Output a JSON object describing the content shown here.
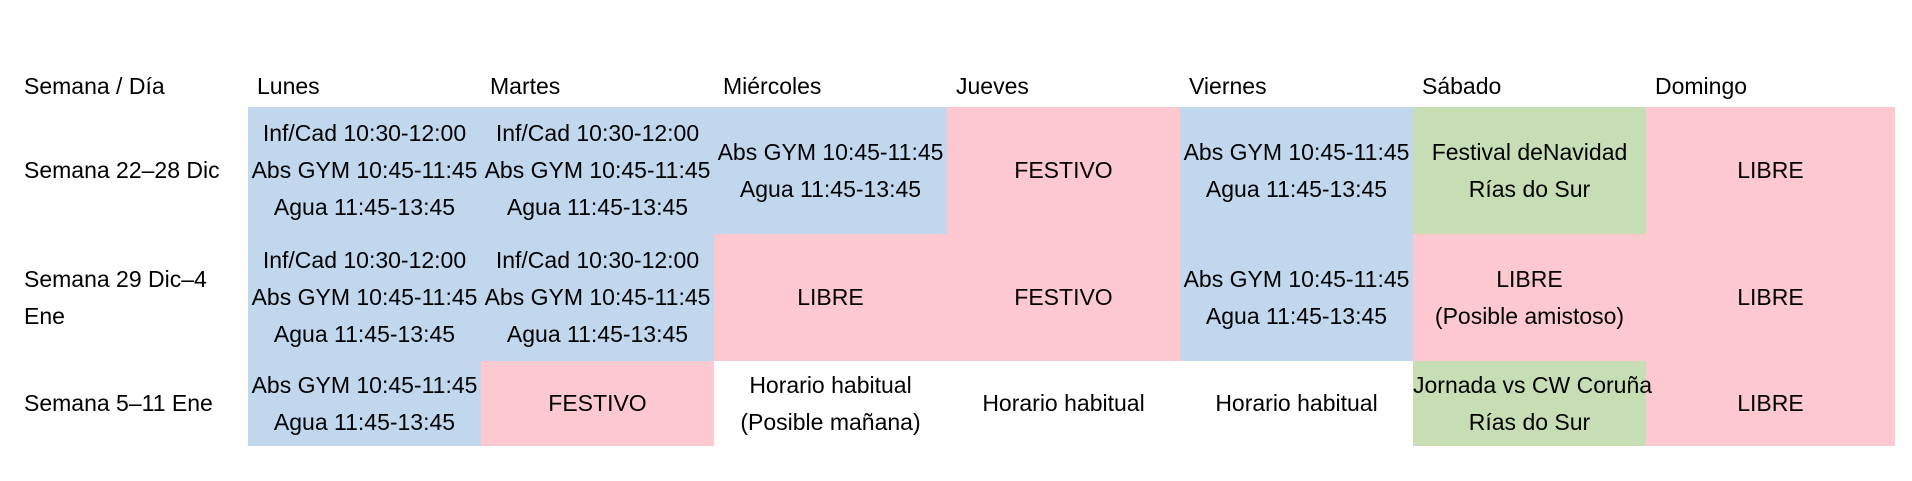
{
  "table": {
    "columns": [
      "Semana / Día",
      "Lunes",
      "Martes",
      "Miércoles",
      "Jueves",
      "Viernes",
      "Sábado",
      "Domingo"
    ],
    "colors": {
      "blue": "#c0d7ee",
      "pink": "#fec8d0",
      "green": "#c7deb5",
      "white": "#ffffff"
    },
    "rows": [
      {
        "week": "Semana 22–28 Dic",
        "cells": [
          {
            "color": "blue",
            "lines": [
              "Inf/Cad 10:30-12:00",
              "Abs GYM 10:45-11:45",
              "Agua 11:45-13:45"
            ]
          },
          {
            "color": "blue",
            "lines": [
              "Inf/Cad 10:30-12:00",
              "Abs GYM 10:45-11:45",
              "Agua 11:45-13:45"
            ]
          },
          {
            "color": "blue",
            "lines": [
              "Abs GYM 10:45-11:45",
              "Agua 11:45-13:45"
            ]
          },
          {
            "color": "pink",
            "lines": [
              "FESTIVO"
            ]
          },
          {
            "color": "blue",
            "lines": [
              "Abs GYM 10:45-11:45",
              "Agua 11:45-13:45"
            ]
          },
          {
            "color": "green",
            "lines": [
              "Festival deNavidad",
              "Rías do Sur"
            ]
          },
          {
            "color": "pink",
            "lines": [
              "LIBRE"
            ]
          }
        ]
      },
      {
        "week": "Semana 29 Dic–4 Ene",
        "cells": [
          {
            "color": "blue",
            "lines": [
              "Inf/Cad 10:30-12:00",
              "Abs GYM 10:45-11:45",
              "Agua 11:45-13:45"
            ]
          },
          {
            "color": "blue",
            "lines": [
              "Inf/Cad 10:30-12:00",
              "Abs GYM 10:45-11:45",
              "Agua 11:45-13:45"
            ]
          },
          {
            "color": "pink",
            "lines": [
              "LIBRE"
            ]
          },
          {
            "color": "pink",
            "lines": [
              "FESTIVO"
            ]
          },
          {
            "color": "blue",
            "lines": [
              "Abs GYM 10:45-11:45",
              "Agua 11:45-13:45"
            ]
          },
          {
            "color": "pink",
            "lines": [
              "LIBRE",
              "(Posible amistoso)"
            ]
          },
          {
            "color": "pink",
            "lines": [
              "LIBRE"
            ]
          }
        ]
      },
      {
        "week": "Semana 5–11 Ene",
        "cells": [
          {
            "color": "blue",
            "lines": [
              "Abs GYM 10:45-11:45",
              "Agua 11:45-13:45"
            ]
          },
          {
            "color": "pink",
            "lines": [
              "FESTIVO"
            ]
          },
          {
            "color": "white",
            "lines": [
              "Horario habitual",
              "(Posible mañana)"
            ]
          },
          {
            "color": "white",
            "lines": [
              "Horario habitual"
            ]
          },
          {
            "color": "white",
            "lines": [
              "Horario habitual"
            ]
          },
          {
            "color": "green",
            "lines": [
              "Jornada vs CW Coruña",
              "Rías do Sur"
            ]
          },
          {
            "color": "pink",
            "lines": [
              "LIBRE"
            ]
          }
        ]
      }
    ]
  }
}
